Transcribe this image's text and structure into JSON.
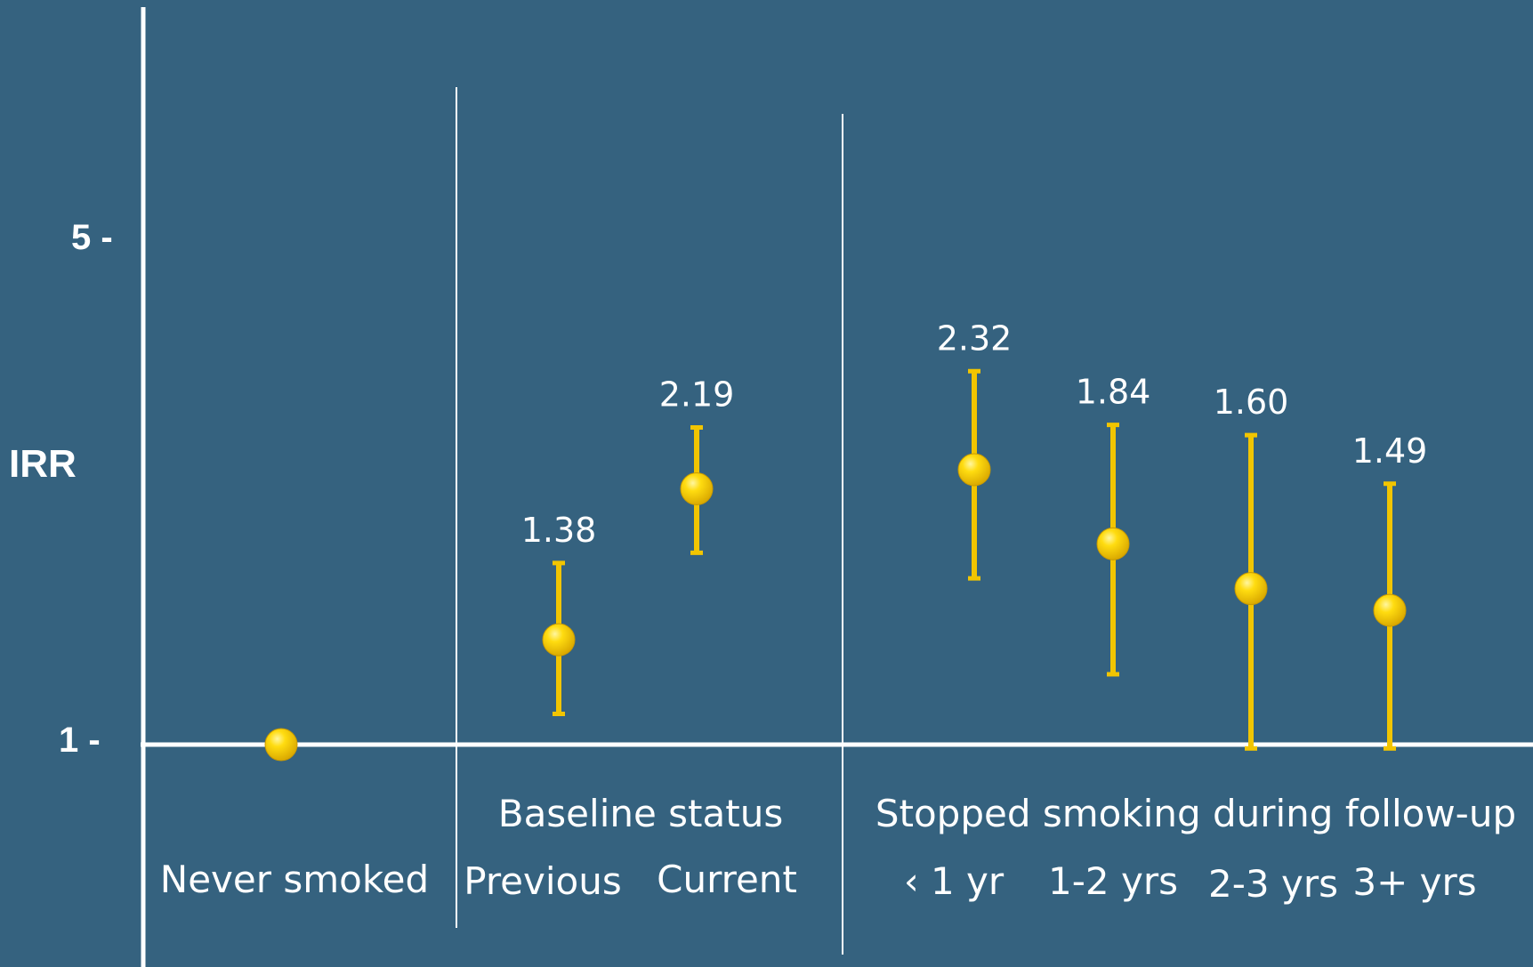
{
  "chart_data": {
    "type": "scatter",
    "ylabel": "IRR",
    "ylim": [
      1,
      5
    ],
    "yticks": [
      {
        "value": 5,
        "label": "5 -"
      },
      {
        "value": 1,
        "label": "1 -"
      }
    ],
    "groups": [
      {
        "label": "",
        "categories": [
          "Never smoked"
        ]
      },
      {
        "label": "Baseline status",
        "categories": [
          "Previous",
          "Current"
        ]
      },
      {
        "label": "Stopped smoking during follow-up",
        "categories": [
          "‹ 1 yr",
          "1-2 yrs",
          "2-3 yrs",
          "3+ yrs"
        ]
      }
    ],
    "points": [
      {
        "category": "Never smoked",
        "value": 1.0,
        "low": 1.0,
        "high": 1.0,
        "label": ""
      },
      {
        "category": "Previous",
        "value": 1.82,
        "low": 1.24,
        "high": 2.42,
        "label": "1.38"
      },
      {
        "category": "Current",
        "value": 3.0,
        "low": 2.5,
        "high": 3.48,
        "label": "2.19"
      },
      {
        "category": "‹ 1 yr",
        "value": 3.15,
        "low": 2.3,
        "high": 3.92,
        "label": "2.32"
      },
      {
        "category": "1-2 yrs",
        "value": 2.57,
        "low": 1.55,
        "high": 3.5,
        "label": "1.84"
      },
      {
        "category": "2-3 yrs",
        "value": 2.22,
        "low": 0.97,
        "high": 3.42,
        "label": "1.60"
      },
      {
        "category": "3+ yrs",
        "value": 2.05,
        "low": 0.97,
        "high": 3.04,
        "label": "1.49"
      }
    ],
    "colors": {
      "background": "#35627f",
      "marker": "#f2c500",
      "axis": "#ffffff",
      "text": "#ffffff"
    }
  }
}
